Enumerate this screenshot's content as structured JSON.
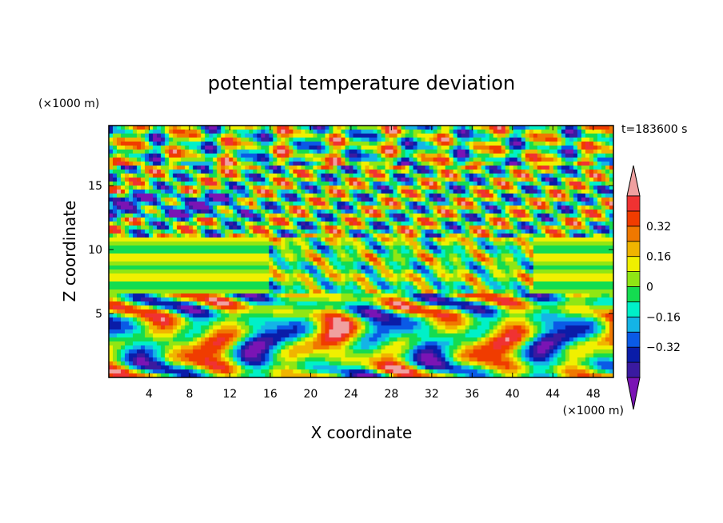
{
  "chart_data": {
    "type": "heatmap",
    "title": "potential temperature deviation",
    "time_label": "t=183600 s",
    "xlabel": "X coordinate",
    "ylabel": "Z coordinate",
    "x_unit": "(×1000 m)",
    "y_unit": "(×1000 m)",
    "xlim": [
      0,
      50
    ],
    "ylim": [
      0,
      19.7
    ],
    "x_ticks": [
      4,
      8,
      12,
      16,
      20,
      24,
      28,
      32,
      36,
      40,
      44,
      48
    ],
    "y_ticks": [
      5,
      10,
      15
    ],
    "colorbar": {
      "levels": [
        -0.48,
        -0.4,
        -0.32,
        -0.24,
        -0.16,
        -0.08,
        0,
        0.08,
        0.16,
        0.24,
        0.32,
        0.4,
        0.48
      ],
      "tick_labels": [
        "0.32",
        "0.16",
        "0",
        "−0.16",
        "−0.32"
      ],
      "tick_values": [
        0.32,
        0.16,
        0,
        -0.16,
        -0.32
      ],
      "colors": [
        "#7a14b4",
        "#3a1aa0",
        "#0a1ca8",
        "#0a5ae6",
        "#14b4e6",
        "#00f0c8",
        "#14dc50",
        "#90e614",
        "#f0f000",
        "#f0b400",
        "#f07800",
        "#f03c00",
        "#f03232",
        "#f0a0a0"
      ],
      "extend": "both"
    }
  }
}
